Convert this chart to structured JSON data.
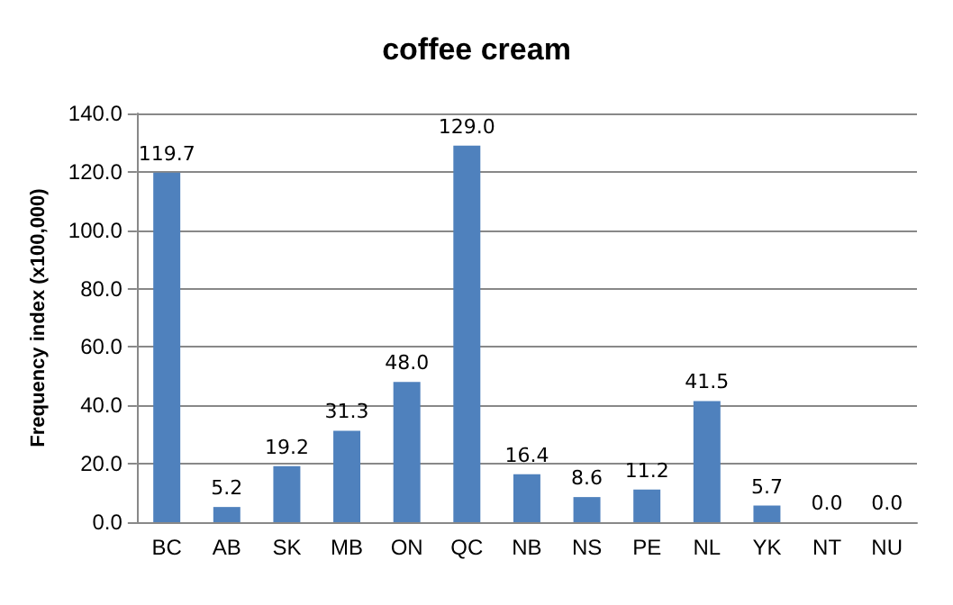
{
  "chart_data": {
    "type": "bar",
    "title": "coffee cream",
    "ylabel": "Frequency index (x100,000)",
    "categories": [
      "BC",
      "AB",
      "SK",
      "MB",
      "ON",
      "QC",
      "NB",
      "NS",
      "PE",
      "NL",
      "YK",
      "NT",
      "NU"
    ],
    "values": [
      119.7,
      5.2,
      19.2,
      31.3,
      48.0,
      129.0,
      16.4,
      8.6,
      11.2,
      41.5,
      5.7,
      0.0,
      0.0
    ],
    "value_labels": [
      "119.7",
      "5.2",
      "19.2",
      "31.3",
      "48.0",
      "129.0",
      "16.4",
      "8.6",
      "11.2",
      "41.5",
      "5.7",
      "0.0",
      "0.0"
    ],
    "color": "#4f81bd",
    "ylim": [
      0,
      140
    ],
    "yticks": [
      {
        "value": 0,
        "label": "0.0"
      },
      {
        "value": 20,
        "label": "20.0"
      },
      {
        "value": 40,
        "label": "40.0"
      },
      {
        "value": 60,
        "label": "60.0"
      },
      {
        "value": 80,
        "label": "80.0"
      },
      {
        "value": 100,
        "label": "100.0"
      },
      {
        "value": 120,
        "label": "120.0"
      },
      {
        "value": 140,
        "label": "140.0"
      }
    ],
    "grid": "y"
  }
}
